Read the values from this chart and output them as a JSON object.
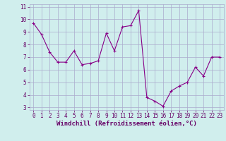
{
  "x": [
    0,
    1,
    2,
    3,
    4,
    5,
    6,
    7,
    8,
    9,
    10,
    11,
    12,
    13,
    14,
    15,
    16,
    17,
    18,
    19,
    20,
    21,
    22,
    23
  ],
  "y": [
    9.7,
    8.8,
    7.4,
    6.6,
    6.6,
    7.5,
    6.4,
    6.5,
    6.7,
    8.9,
    7.5,
    9.4,
    9.5,
    10.7,
    3.8,
    3.5,
    3.1,
    4.3,
    4.7,
    5.0,
    6.2,
    5.5,
    7.0,
    7.0
  ],
  "line_color": "#880088",
  "marker": "+",
  "marker_size": 3,
  "marker_linewidth": 0.8,
  "line_width": 0.8,
  "bg_color": "#d0eeed",
  "grid_color": "#aaaacc",
  "xlabel": "Windchill (Refroidissement éolien,°C)",
  "ylabel": "",
  "xlim": [
    -0.5,
    23.5
  ],
  "ylim": [
    2.8,
    11.2
  ],
  "yticks": [
    3,
    4,
    5,
    6,
    7,
    8,
    9,
    10,
    11
  ],
  "xticks": [
    0,
    1,
    2,
    3,
    4,
    5,
    6,
    7,
    8,
    9,
    10,
    11,
    12,
    13,
    14,
    15,
    16,
    17,
    18,
    19,
    20,
    21,
    22,
    23
  ],
  "tick_fontsize": 5.5,
  "xlabel_fontsize": 6.5,
  "axis_color": "#660066",
  "spine_color": "#aaaacc"
}
